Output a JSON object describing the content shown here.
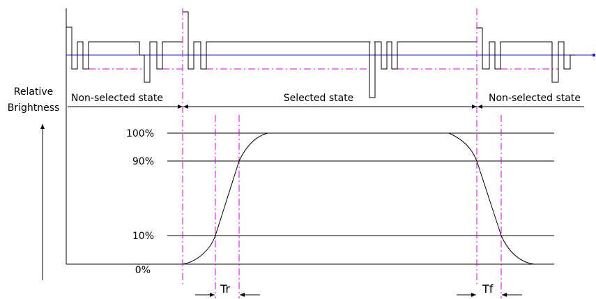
{
  "labels": {
    "y_axis_title_line1": "Relative",
    "y_axis_title_line2": "Brightness",
    "state_non_selected_left": "Non-selected state",
    "state_selected": "Selected state",
    "state_non_selected_right": "Non-selected state",
    "level_100": "100%",
    "level_90": "90%",
    "level_10": "10%",
    "level_0": "0%",
    "rise_time": "Tr",
    "fall_time": "Tf"
  },
  "colors": {
    "guide_lines": "#e000e0",
    "baseline": "#1a1aff",
    "ink": "#000000"
  }
}
